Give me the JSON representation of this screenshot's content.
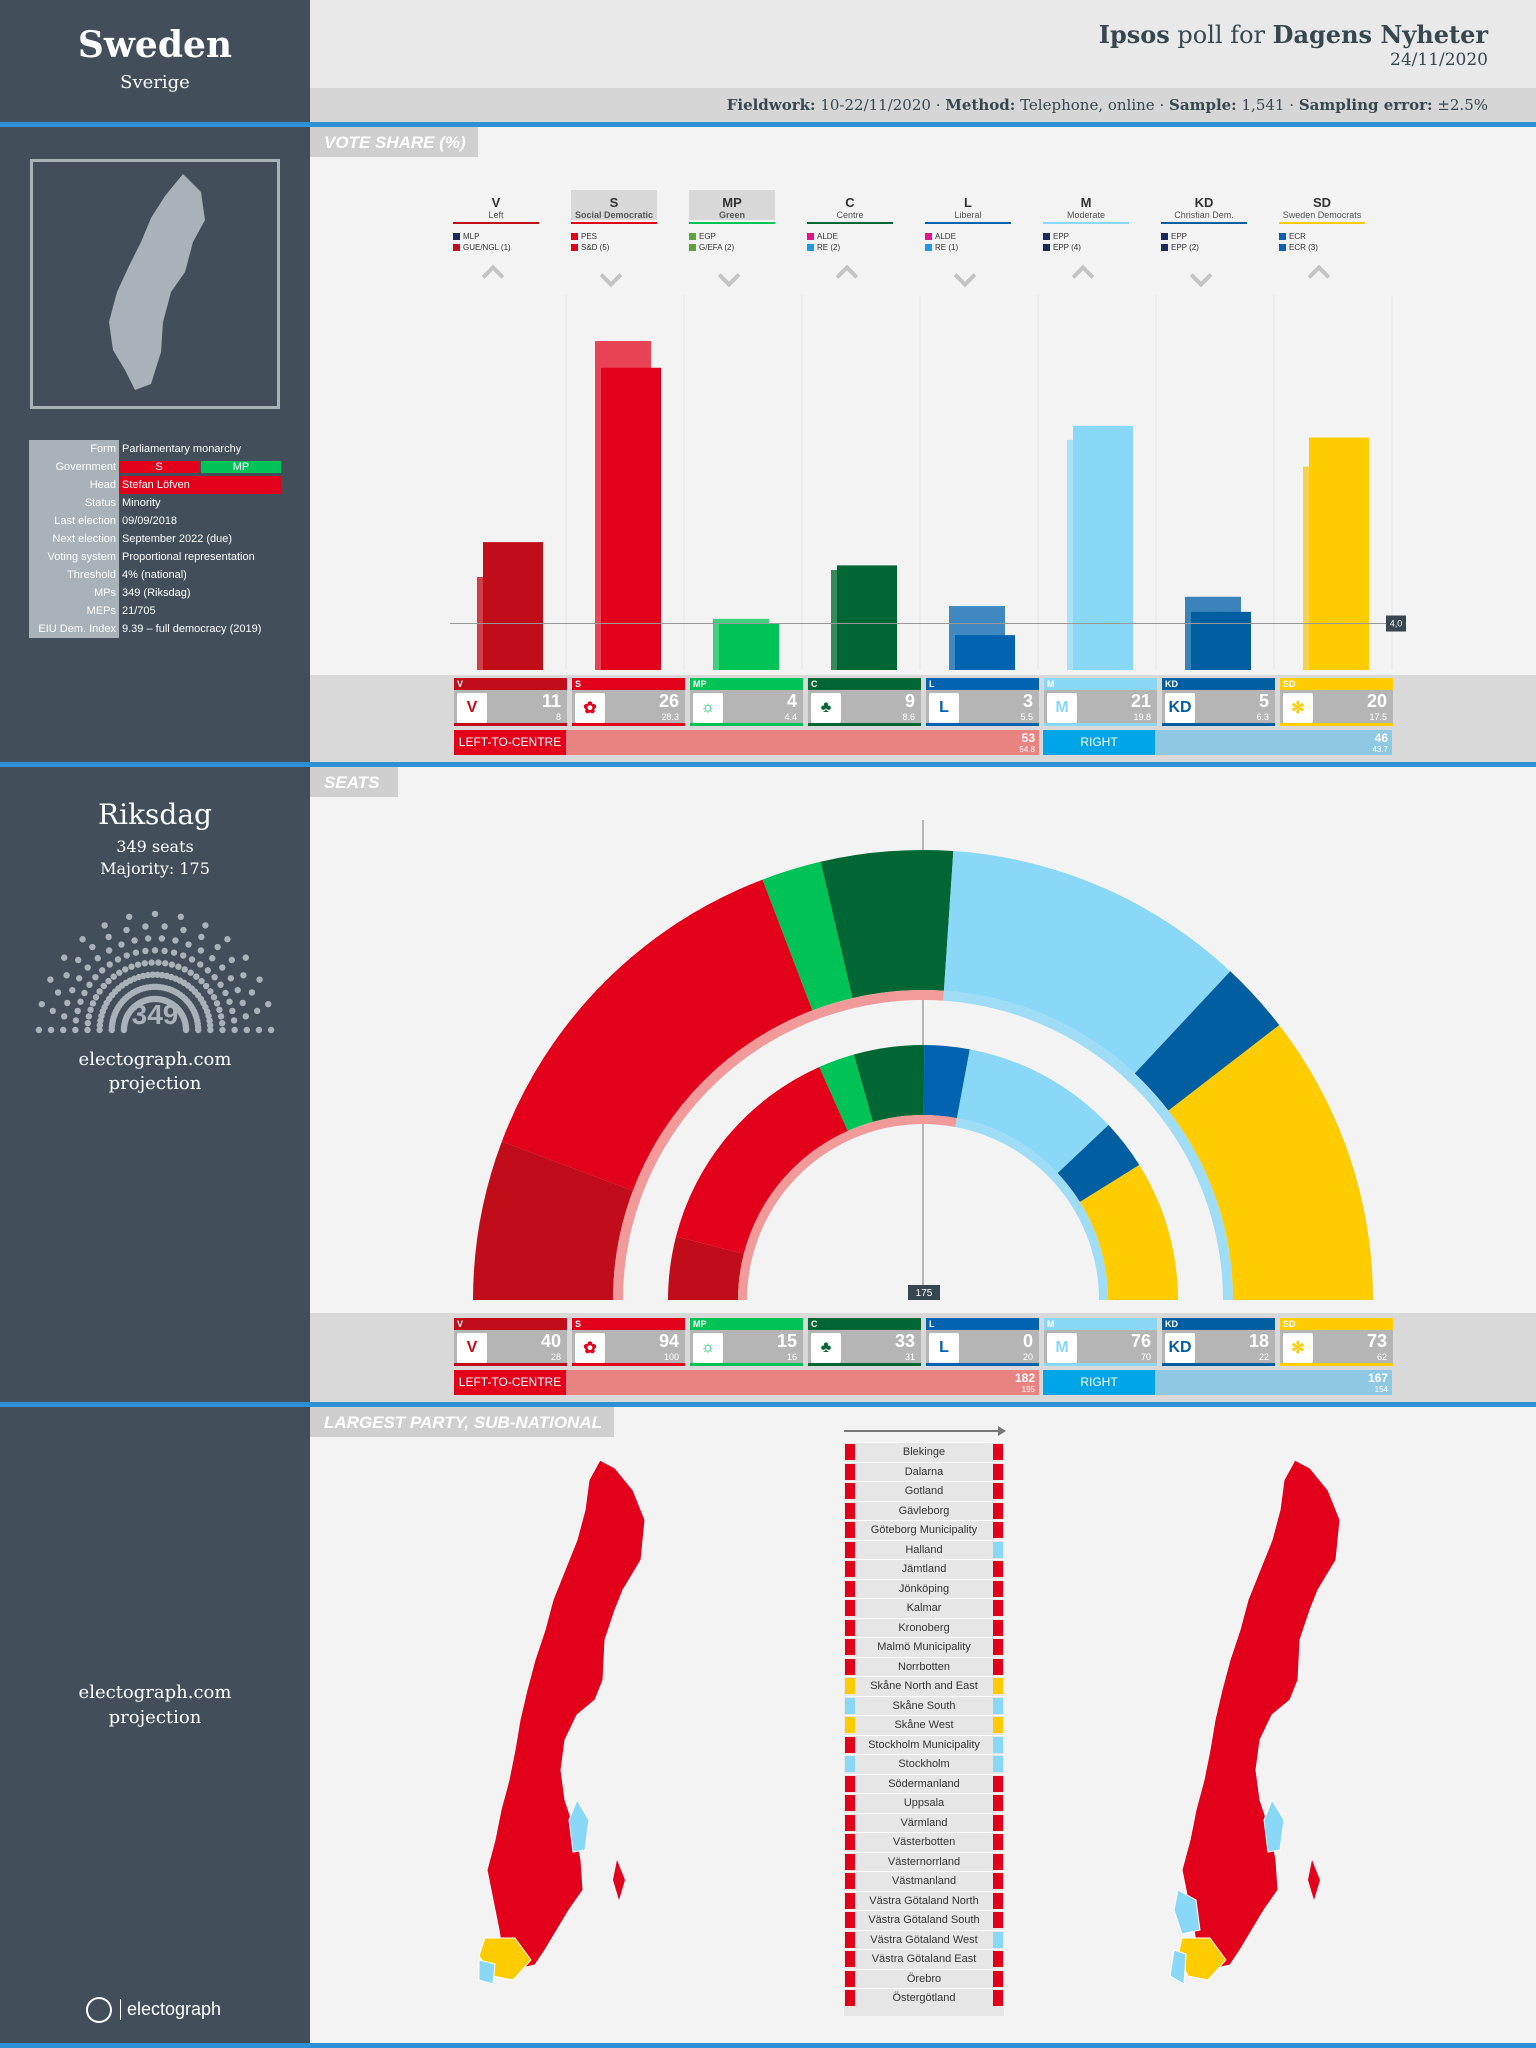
{
  "country": {
    "name": "Sweden",
    "native": "Sverige"
  },
  "header": {
    "pollster": "Ipsos",
    "poll_for": "poll for",
    "client": "Dagens Nyheter",
    "date": "24/11/2020",
    "fieldwork_k": "Fieldwork:",
    "fieldwork_v": "10-22/11/2020",
    "method_k": "Method:",
    "method_v": "Telephone, online",
    "sample_k": "Sample:",
    "sample_v": "1,541",
    "error_k": "Sampling error:",
    "error_v": "±2.5%",
    "sep": "·"
  },
  "info": [
    {
      "k": "Form",
      "v": "Parliamentary monarchy"
    },
    {
      "k": "Government",
      "v": "",
      "tags": [
        "S",
        "MP"
      ]
    },
    {
      "k": "Head",
      "v": "Stefan Löfven"
    },
    {
      "k": "Status",
      "v": "Minority"
    },
    {
      "k": "Last election",
      "v": "09/09/2018"
    },
    {
      "k": "Next election",
      "v": "September 2022 (due)"
    },
    {
      "k": "Voting system",
      "v": "Proportional representation"
    },
    {
      "k": "Threshold",
      "v": "4% (national)"
    },
    {
      "k": "MPs",
      "v": "349 (Riksdag)"
    },
    {
      "k": "MEPs",
      "v": "21/705"
    },
    {
      "k": "EIU Dem. Index",
      "v": "9.39 – full democracy (2019)"
    }
  ],
  "sections": {
    "vote": "VOTE SHARE (%)",
    "seats": "SEATS",
    "largest": "LARGEST PARTY, SUB-NATIONAL"
  },
  "threshold_label": "4,0",
  "parliament": {
    "name": "Riksdag",
    "seats": "349 seats",
    "majority": "Majority: 175",
    "total": "349",
    "source": "electograph.com",
    "kind": "projection"
  },
  "majority_label": "175",
  "blocs": {
    "left": {
      "label": "LEFT-TO-CENTRE",
      "share": "53",
      "share_prev": "54.8",
      "seats": "182",
      "seats_prev": "195"
    },
    "right": {
      "label": "RIGHT",
      "share": "46",
      "share_prev": "43.7",
      "seats": "167",
      "seats_prev": "154"
    }
  },
  "map_source": "electograph.com",
  "map_kind": "projection",
  "brand": "electograph",
  "chart_data": {
    "type": "bar",
    "title": "VOTE SHARE (%)",
    "ylim": [
      0,
      30
    ],
    "threshold": 4.0,
    "parties": [
      {
        "abbr": "V",
        "name": "Left",
        "color": "#c00d19",
        "prev_color": "#d23e45",
        "vote": 11,
        "vote_prev": 8.0,
        "seats": 40,
        "seats_prev": 28,
        "trend": "up",
        "affil": [
          {
            "c": "#1a2a5a",
            "t": "MLP"
          },
          {
            "c": "#c00d19",
            "t": "GUE/NGL (1)"
          }
        ],
        "logo": "V"
      },
      {
        "abbr": "S",
        "name": "Social Democratic",
        "color": "#e2001a",
        "prev_color": "#e84456",
        "vote": 26,
        "vote_prev": 28.3,
        "seats": 94,
        "seats_prev": 100,
        "trend": "down",
        "affil": [
          {
            "c": "#e2001a",
            "t": "PES"
          },
          {
            "c": "#e2001a",
            "t": "S&D (5)"
          }
        ],
        "logo": "✿"
      },
      {
        "abbr": "MP",
        "name": "Green",
        "color": "#00c358",
        "prev_color": "#40d080",
        "vote": 4,
        "vote_prev": 4.4,
        "seats": 15,
        "seats_prev": 16,
        "trend": "down",
        "affil": [
          {
            "c": "#5ba33b",
            "t": "EGP"
          },
          {
            "c": "#5ba33b",
            "t": "G/EFA (2)"
          }
        ],
        "logo": "☼"
      },
      {
        "abbr": "C",
        "name": "Centre",
        "color": "#006633",
        "prev_color": "#338a5a",
        "vote": 9,
        "vote_prev": 8.6,
        "seats": 33,
        "seats_prev": 31,
        "trend": "up",
        "affil": [
          {
            "c": "#e0138c",
            "t": "ALDE"
          },
          {
            "c": "#1e9be0",
            "t": "RE (2)"
          }
        ],
        "logo": "♣"
      },
      {
        "abbr": "L",
        "name": "Liberal",
        "color": "#0063b0",
        "prev_color": "#3f88c2",
        "vote": 3,
        "vote_prev": 5.5,
        "seats": 0,
        "seats_prev": 20,
        "trend": "down",
        "affil": [
          {
            "c": "#e0138c",
            "t": "ALDE"
          },
          {
            "c": "#1e9be0",
            "t": "RE (1)"
          }
        ],
        "logo": "L"
      },
      {
        "abbr": "M",
        "name": "Moderate",
        "color": "#8ad8f8",
        "prev_color": "#a8e2f8",
        "vote": 21,
        "vote_prev": 19.8,
        "seats": 76,
        "seats_prev": 70,
        "trend": "up",
        "affil": [
          {
            "c": "#1a2a5a",
            "t": "EPP"
          },
          {
            "c": "#1a2a5a",
            "t": "EPP (4)"
          }
        ],
        "logo": "M"
      },
      {
        "abbr": "KD",
        "name": "Christian Dem.",
        "color": "#005ea1",
        "prev_color": "#3a84bb",
        "vote": 5,
        "vote_prev": 6.3,
        "seats": 18,
        "seats_prev": 22,
        "trend": "down",
        "affil": [
          {
            "c": "#1a2a5a",
            "t": "EPP"
          },
          {
            "c": "#1a2a5a",
            "t": "EPP (2)"
          }
        ],
        "logo": "KD"
      },
      {
        "abbr": "SD",
        "name": "Sweden Democrats",
        "color": "#ffcc00",
        "prev_color": "#f7d24c",
        "vote": 20,
        "vote_prev": 17.5,
        "seats": 73,
        "seats_prev": 62,
        "trend": "up",
        "affil": [
          {
            "c": "#0a63b0",
            "t": "ECR"
          },
          {
            "c": "#0a63b0",
            "t": "ECR (3)"
          }
        ],
        "logo": "✻"
      }
    ]
  },
  "regions": [
    {
      "n": "Blekinge",
      "l": "#e2001a",
      "r": "#e2001a"
    },
    {
      "n": "Dalarna",
      "l": "#e2001a",
      "r": "#e2001a"
    },
    {
      "n": "Gotland",
      "l": "#e2001a",
      "r": "#e2001a"
    },
    {
      "n": "Gävleborg",
      "l": "#e2001a",
      "r": "#e2001a"
    },
    {
      "n": "Göteborg Municipality",
      "l": "#e2001a",
      "r": "#e2001a"
    },
    {
      "n": "Halland",
      "l": "#e2001a",
      "r": "#8ad8f8"
    },
    {
      "n": "Jämtland",
      "l": "#e2001a",
      "r": "#e2001a"
    },
    {
      "n": "Jönköping",
      "l": "#e2001a",
      "r": "#e2001a"
    },
    {
      "n": "Kalmar",
      "l": "#e2001a",
      "r": "#e2001a"
    },
    {
      "n": "Kronoberg",
      "l": "#e2001a",
      "r": "#e2001a"
    },
    {
      "n": "Malmö Municipality",
      "l": "#e2001a",
      "r": "#e2001a"
    },
    {
      "n": "Norrbotten",
      "l": "#e2001a",
      "r": "#e2001a"
    },
    {
      "n": "Skåne North and East",
      "l": "#ffcc00",
      "r": "#ffcc00"
    },
    {
      "n": "Skåne South",
      "l": "#8ad8f8",
      "r": "#8ad8f8"
    },
    {
      "n": "Skåne West",
      "l": "#ffcc00",
      "r": "#ffcc00"
    },
    {
      "n": "Stockholm Municipality",
      "l": "#e2001a",
      "r": "#8ad8f8"
    },
    {
      "n": "Stockholm",
      "l": "#8ad8f8",
      "r": "#8ad8f8"
    },
    {
      "n": "Södermanland",
      "l": "#e2001a",
      "r": "#e2001a"
    },
    {
      "n": "Uppsala",
      "l": "#e2001a",
      "r": "#e2001a"
    },
    {
      "n": "Värmland",
      "l": "#e2001a",
      "r": "#e2001a"
    },
    {
      "n": "Västerbotten",
      "l": "#e2001a",
      "r": "#e2001a"
    },
    {
      "n": "Västernorrland",
      "l": "#e2001a",
      "r": "#e2001a"
    },
    {
      "n": "Västmanland",
      "l": "#e2001a",
      "r": "#e2001a"
    },
    {
      "n": "Västra Götaland North",
      "l": "#e2001a",
      "r": "#e2001a"
    },
    {
      "n": "Västra Götaland South",
      "l": "#e2001a",
      "r": "#e2001a"
    },
    {
      "n": "Västra Götaland West",
      "l": "#e2001a",
      "r": "#8ad8f8"
    },
    {
      "n": "Västra Götaland East",
      "l": "#e2001a",
      "r": "#e2001a"
    },
    {
      "n": "Örebro",
      "l": "#e2001a",
      "r": "#e2001a"
    },
    {
      "n": "Östergötland",
      "l": "#e2001a",
      "r": "#e2001a"
    }
  ]
}
